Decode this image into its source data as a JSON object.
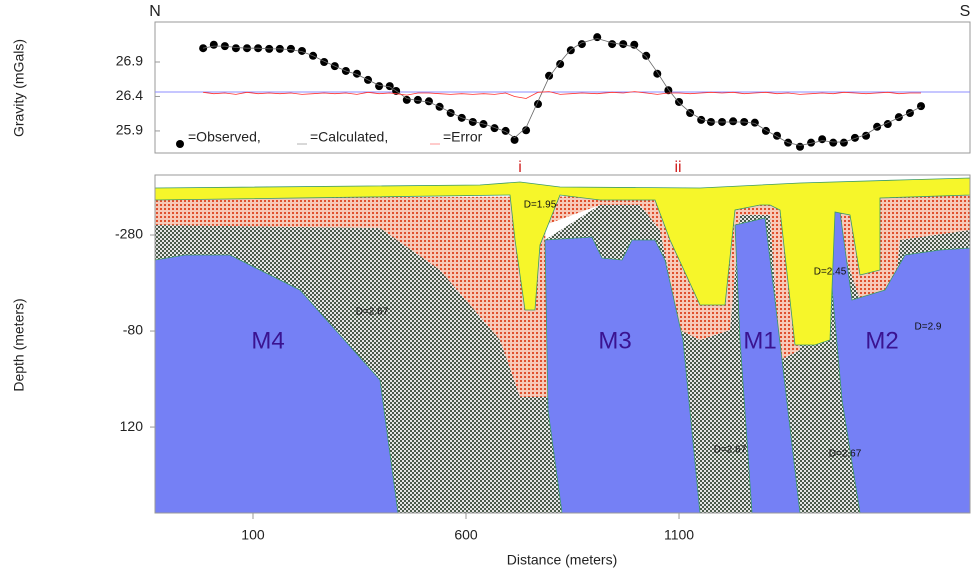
{
  "chart_data": [
    {
      "type": "line",
      "ylabel": "Gravity (mGals)",
      "annotations": [
        "N",
        "S",
        "i",
        "ii"
      ],
      "x": [
        -17,
        8,
        34,
        60,
        86,
        112,
        138,
        163,
        189,
        215,
        241,
        267,
        292,
        318,
        344,
        370,
        396,
        421,
        436,
        461,
        487,
        513,
        538,
        564,
        590,
        616,
        641,
        667,
        693,
        714,
        741,
        769,
        795,
        821,
        846,
        872,
        908,
        943,
        969,
        995,
        1023,
        1049,
        1075,
        1100,
        1126,
        1152,
        1175,
        1201,
        1227,
        1253,
        1278,
        1304,
        1330,
        1356,
        1384,
        1410,
        1436,
        1462,
        1487,
        1513,
        1539,
        1565,
        1590,
        1616,
        1642,
        1668
      ],
      "series": [
        {
          "name": "=Observed,",
          "color": "#000000",
          "marker": "circle",
          "values": [
            27.1,
            27.15,
            27.13,
            27.1,
            27.1,
            27.1,
            27.09,
            27.09,
            27.09,
            27.06,
            26.99,
            26.9,
            26.84,
            26.77,
            26.73,
            26.64,
            26.55,
            26.55,
            26.48,
            26.35,
            26.35,
            26.33,
            26.25,
            26.16,
            26.09,
            26.03,
            26.0,
            25.94,
            25.9,
            25.77,
            25.91,
            26.29,
            26.7,
            26.87,
            27.07,
            27.16,
            27.26,
            27.16,
            27.16,
            27.15,
            26.99,
            26.73,
            26.49,
            26.32,
            26.16,
            26.06,
            26.03,
            26.03,
            26.04,
            26.03,
            26.02,
            25.9,
            25.83,
            25.73,
            25.67,
            25.73,
            25.78,
            25.73,
            25.73,
            25.8,
            25.83,
            25.96,
            26.0,
            26.1,
            26.16,
            26.26
          ]
        },
        {
          "name": "=Calculated,",
          "color": "#666666",
          "marker": "none",
          "values": [
            27.1,
            27.13,
            27.13,
            27.11,
            27.1,
            27.1,
            27.09,
            27.09,
            27.08,
            27.05,
            26.99,
            26.91,
            26.84,
            26.77,
            26.72,
            26.64,
            26.56,
            26.54,
            26.48,
            26.37,
            26.34,
            26.32,
            26.25,
            26.17,
            26.09,
            26.04,
            26.0,
            25.95,
            25.89,
            25.8,
            25.95,
            26.33,
            26.68,
            26.9,
            27.08,
            27.18,
            27.24,
            27.18,
            27.15,
            27.12,
            26.98,
            26.75,
            26.5,
            26.31,
            26.17,
            26.07,
            26.03,
            26.03,
            26.03,
            26.03,
            26.01,
            25.91,
            25.82,
            25.73,
            25.69,
            25.72,
            25.76,
            25.74,
            25.74,
            25.79,
            25.85,
            25.95,
            26.02,
            26.09,
            26.17,
            26.25
          ]
        },
        {
          "name": "=Error",
          "color": "#ff3030",
          "marker": "none",
          "values": [
            26.46,
            26.44,
            26.45,
            26.43,
            26.46,
            26.44,
            26.45,
            26.44,
            26.45,
            26.43,
            26.44,
            26.45,
            26.44,
            26.45,
            26.43,
            26.46,
            26.44,
            26.45,
            26.44,
            26.42,
            26.45,
            26.45,
            26.44,
            26.43,
            26.44,
            26.43,
            26.44,
            26.43,
            26.45,
            26.4,
            26.37,
            26.46,
            26.47,
            26.43,
            26.44,
            26.45,
            26.44,
            26.46,
            26.45,
            26.47,
            26.45,
            26.43,
            26.45,
            26.45,
            26.44,
            26.45,
            26.46,
            26.45,
            26.46,
            26.44,
            26.45,
            26.46,
            26.44,
            26.45,
            26.43,
            26.44,
            26.45,
            26.44,
            26.46,
            26.45,
            26.44,
            26.45,
            26.46,
            26.44,
            26.45,
            26.45
          ]
        }
      ],
      "xlim": [
        -130,
        1783
      ],
      "ylim": [
        25.58,
        27.48
      ],
      "yticks": [
        26.9,
        26.4,
        25.9
      ]
    },
    {
      "type": "section",
      "xlabel": "Distance (meters)",
      "ylabel": "Depth (meters)",
      "xlim": [
        -130,
        1783
      ],
      "ylim": [
        -405,
        299
      ],
      "xticks": [
        100,
        600,
        1100
      ],
      "yticks": [
        -280,
        -80,
        120
      ],
      "labels": [
        "M4",
        "M3",
        "M1",
        "M2",
        "D=1.95",
        "D=2.67",
        "D=2.67",
        "D=2.45",
        "D=2.9",
        "D=2.67"
      ]
    }
  ]
}
